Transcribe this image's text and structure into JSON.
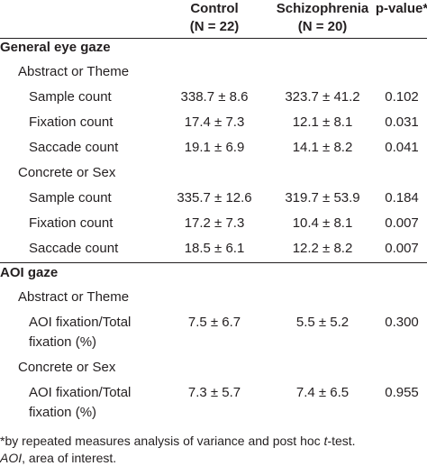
{
  "header": {
    "columns": [
      {
        "line1": "Control",
        "line2": "(N = 22)"
      },
      {
        "line1": "Schizophrenia",
        "line2": "(N = 20)"
      },
      {
        "line1": "p-value*"
      }
    ]
  },
  "sections": [
    {
      "title": "General eye gaze",
      "groups": [
        {
          "title": "Abstract or Theme",
          "rows": [
            {
              "label": [
                "Sample count"
              ],
              "values": [
                "338.7 ± 8.6",
                "323.7 ± 41.2",
                "0.102"
              ]
            },
            {
              "label": [
                "Fixation count"
              ],
              "values": [
                "17.4 ± 7.3",
                "12.1 ± 8.1",
                "0.031"
              ]
            },
            {
              "label": [
                "Saccade count"
              ],
              "values": [
                "19.1 ± 6.9",
                "14.1 ± 8.2",
                "0.041"
              ]
            }
          ]
        },
        {
          "title": "Concrete or Sex",
          "rows": [
            {
              "label": [
                "Sample count"
              ],
              "values": [
                "335.7 ± 12.6",
                "319.7 ± 53.9",
                "0.184"
              ]
            },
            {
              "label": [
                "Fixation count"
              ],
              "values": [
                "17.2 ± 7.3",
                "10.4 ± 8.1",
                "0.007"
              ]
            },
            {
              "label": [
                "Saccade count"
              ],
              "values": [
                "18.5 ± 6.1",
                "12.2 ± 8.2",
                "0.007"
              ]
            }
          ]
        }
      ]
    },
    {
      "title": "AOI gaze",
      "groups": [
        {
          "title": "Abstract or Theme",
          "rows": [
            {
              "label": [
                "AOI fixation/Total",
                "fixation (%)"
              ],
              "values": [
                "7.5 ± 6.7",
                "5.5 ± 5.2",
                "0.300"
              ]
            }
          ]
        },
        {
          "title": "Concrete or Sex",
          "rows": [
            {
              "label": [
                "AOI fixation/Total",
                "fixation (%)"
              ],
              "values": [
                "7.3 ± 5.7",
                "7.4 ± 6.5",
                "0.955"
              ]
            }
          ]
        }
      ]
    }
  ],
  "footnotes": [
    [
      "*by repeated measures analysis of variance and post hoc ",
      "t",
      "-test."
    ],
    [
      "AOI",
      ", area of interest."
    ]
  ]
}
